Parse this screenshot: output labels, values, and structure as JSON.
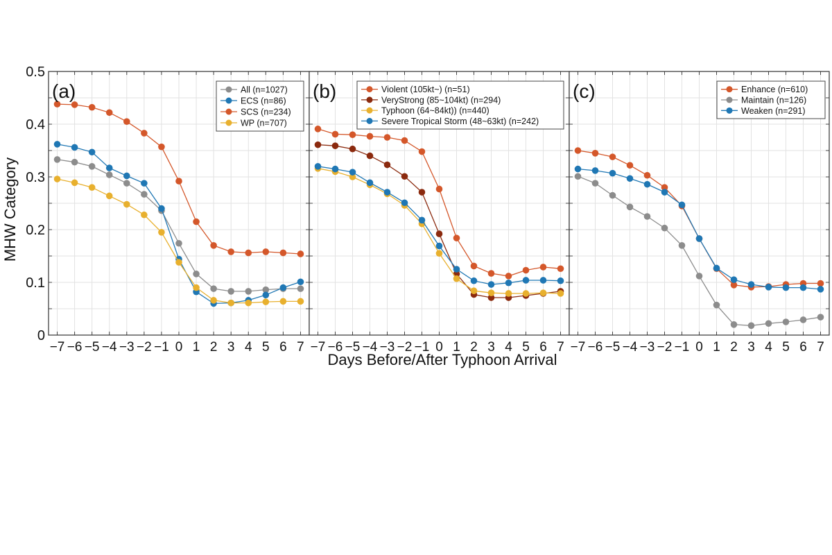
{
  "figure": {
    "ylabel": "MHW Category",
    "xlabel": "Days Before/After Typhoon Arrival"
  },
  "chart_data": [
    {
      "type": "line",
      "panel_label": "(a)",
      "x": [
        -7,
        -6,
        -5,
        -4,
        -3,
        -2,
        -1,
        0,
        1,
        2,
        3,
        4,
        5,
        6,
        7
      ],
      "xlim": [
        -7.5,
        7.5
      ],
      "ylim": [
        0,
        0.5
      ],
      "yticks": [
        "0",
        "0.1",
        "0.2",
        "0.3",
        "0.4",
        "0.5"
      ],
      "grid": true,
      "legend_position": "top-right",
      "series": [
        {
          "name": "All (n=1027)",
          "color": "#8c8c8c",
          "values": [
            0.333,
            0.328,
            0.32,
            0.304,
            0.288,
            0.267,
            0.236,
            0.174,
            0.116,
            0.088,
            0.083,
            0.083,
            0.086,
            0.088,
            0.088
          ]
        },
        {
          "name": "ECS (n=86)",
          "color": "#1f77b4",
          "values": [
            0.362,
            0.356,
            0.347,
            0.317,
            0.302,
            0.288,
            0.24,
            0.144,
            0.082,
            0.06,
            0.061,
            0.066,
            0.076,
            0.09,
            0.101
          ]
        },
        {
          "name": "SCS (n=234)",
          "color": "#d4572a",
          "values": [
            0.438,
            0.437,
            0.432,
            0.422,
            0.405,
            0.383,
            0.357,
            0.292,
            0.215,
            0.17,
            0.158,
            0.156,
            0.158,
            0.156,
            0.154
          ]
        },
        {
          "name": "WP (n=707)",
          "color": "#e8b02e",
          "values": [
            0.296,
            0.289,
            0.28,
            0.264,
            0.248,
            0.228,
            0.195,
            0.138,
            0.09,
            0.066,
            0.061,
            0.061,
            0.063,
            0.064,
            0.064
          ]
        }
      ]
    },
    {
      "type": "line",
      "panel_label": "(b)",
      "x": [
        -7,
        -6,
        -5,
        -4,
        -3,
        -2,
        -1,
        0,
        1,
        2,
        3,
        4,
        5,
        6,
        7
      ],
      "xlim": [
        -7.5,
        7.5
      ],
      "ylim": [
        0,
        0.5
      ],
      "grid": true,
      "legend_position": "top-left",
      "series": [
        {
          "name": "Violent (105kt~) (n=51)",
          "color": "#d4572a",
          "values": [
            0.391,
            0.381,
            0.38,
            0.377,
            0.375,
            0.369,
            0.348,
            0.277,
            0.184,
            0.131,
            0.117,
            0.112,
            0.123,
            0.129,
            0.126
          ]
        },
        {
          "name": "VeryStrong (85~104kt) (n=294)",
          "color": "#8b2a0e",
          "values": [
            0.361,
            0.359,
            0.353,
            0.34,
            0.323,
            0.301,
            0.271,
            0.192,
            0.116,
            0.077,
            0.071,
            0.071,
            0.075,
            0.079,
            0.083
          ]
        },
        {
          "name": "Typhoon (64~84kt)) (n=440)",
          "color": "#e8b02e",
          "values": [
            0.316,
            0.31,
            0.3,
            0.285,
            0.268,
            0.246,
            0.211,
            0.155,
            0.107,
            0.084,
            0.08,
            0.079,
            0.079,
            0.08,
            0.079
          ]
        },
        {
          "name": "Severe Tropical Storm (48~63kt) (n=242)",
          "color": "#1f77b4",
          "values": [
            0.32,
            0.315,
            0.309,
            0.289,
            0.271,
            0.251,
            0.218,
            0.169,
            0.125,
            0.103,
            0.096,
            0.099,
            0.104,
            0.104,
            0.103
          ]
        }
      ]
    },
    {
      "type": "line",
      "panel_label": "(c)",
      "x": [
        -7,
        -6,
        -5,
        -4,
        -3,
        -2,
        -1,
        0,
        1,
        2,
        3,
        4,
        5,
        6,
        7
      ],
      "xlim": [
        -7.5,
        7.5
      ],
      "ylim": [
        0,
        0.5
      ],
      "grid": true,
      "legend_position": "top-right",
      "series": [
        {
          "name": "Enhance (n=610)",
          "color": "#d4572a",
          "values": [
            0.35,
            0.345,
            0.338,
            0.322,
            0.303,
            0.28,
            0.245,
            0.183,
            0.126,
            0.095,
            0.091,
            0.092,
            0.096,
            0.098,
            0.098
          ]
        },
        {
          "name": "Maintain (n=126)",
          "color": "#8c8c8c",
          "values": [
            0.301,
            0.288,
            0.265,
            0.243,
            0.225,
            0.203,
            0.17,
            0.112,
            0.057,
            0.02,
            0.018,
            0.022,
            0.025,
            0.029,
            0.034
          ]
        },
        {
          "name": "Weaken (n=291)",
          "color": "#1f77b4",
          "values": [
            0.315,
            0.312,
            0.307,
            0.297,
            0.286,
            0.271,
            0.247,
            0.183,
            0.127,
            0.105,
            0.096,
            0.091,
            0.09,
            0.09,
            0.087
          ]
        }
      ]
    }
  ]
}
